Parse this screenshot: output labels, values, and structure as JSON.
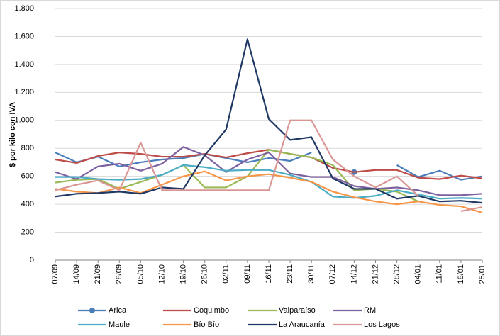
{
  "chart_data": {
    "type": "line",
    "y_label": "$ por kilo con IVA",
    "categories": [
      "07/09",
      "14/09",
      "21/09",
      "28/09",
      "05/10",
      "12/10",
      "19/10",
      "26/10",
      "02/11",
      "09/11",
      "16/11",
      "23/11",
      "30/11",
      "07/12",
      "14/12",
      "21/12",
      "28/12",
      "04/01",
      "11/01",
      "18/01",
      "25/01"
    ],
    "ylim": [
      0,
      1800
    ],
    "yticks": [
      0,
      200,
      400,
      600,
      800,
      {
        "value": 1000,
        "label": "1.000"
      },
      {
        "value": 1200,
        "label": "1.200"
      },
      {
        "value": 1400,
        "label": "1.400"
      },
      {
        "value": 1600,
        "label": "1.600"
      },
      {
        "value": 1800,
        "label": "1.800"
      }
    ],
    "grid": true,
    "legend": "bottom",
    "series": [
      {
        "name": "Arica",
        "color": "#4a7ebb",
        "marker": true,
        "values": [
          770,
          700,
          740,
          670,
          700,
          720,
          730,
          760,
          730,
          700,
          730,
          710,
          770,
          null,
          630,
          null,
          680,
          595,
          640,
          575,
          600
        ]
      },
      {
        "name": "Coquimbo",
        "color": "#be4b48",
        "values": [
          720,
          695,
          745,
          770,
          760,
          740,
          740,
          760,
          735,
          765,
          790,
          760,
          735,
          660,
          630,
          645,
          645,
          590,
          580,
          605,
          585
        ]
      },
      {
        "name": "Valparaíso",
        "color": "#98b954",
        "values": [
          555,
          575,
          580,
          510,
          560,
          610,
          680,
          520,
          520,
          600,
          790,
          760,
          735,
          680,
          500,
          510,
          490,
          420,
          null,
          null,
          null
        ]
      },
      {
        "name": "RM",
        "color": "#7d60a0",
        "values": [
          630,
          580,
          670,
          690,
          640,
          690,
          810,
          750,
          630,
          720,
          770,
          620,
          595,
          595,
          530,
          510,
          520,
          500,
          465,
          465,
          475
        ]
      },
      {
        "name": "Maule",
        "color": "#4bacc6",
        "values": [
          595,
          595,
          580,
          575,
          580,
          610,
          680,
          665,
          640,
          645,
          645,
          610,
          560,
          455,
          445,
          460,
          500,
          470,
          440,
          445,
          440
        ]
      },
      {
        "name": "Bío Bío",
        "color": "#f79646",
        "values": [
          510,
          490,
          480,
          520,
          480,
          540,
          600,
          635,
          570,
          600,
          615,
          590,
          560,
          490,
          450,
          420,
          400,
          420,
          395,
          385,
          340
        ]
      },
      {
        "name": "La Araucanía",
        "color": "#1f3864",
        "values": [
          455,
          475,
          480,
          490,
          475,
          520,
          510,
          750,
          935,
          1580,
          1010,
          860,
          880,
          585,
          510,
          510,
          440,
          460,
          420,
          425,
          410
        ]
      },
      {
        "name": "Los Lagos",
        "color": "#d99694",
        "values": [
          500,
          540,
          570,
          500,
          840,
          500,
          500,
          500,
          500,
          500,
          500,
          1000,
          1000,
          720,
          600,
          520,
          600,
          460,
          null,
          350,
          380
        ]
      }
    ]
  }
}
